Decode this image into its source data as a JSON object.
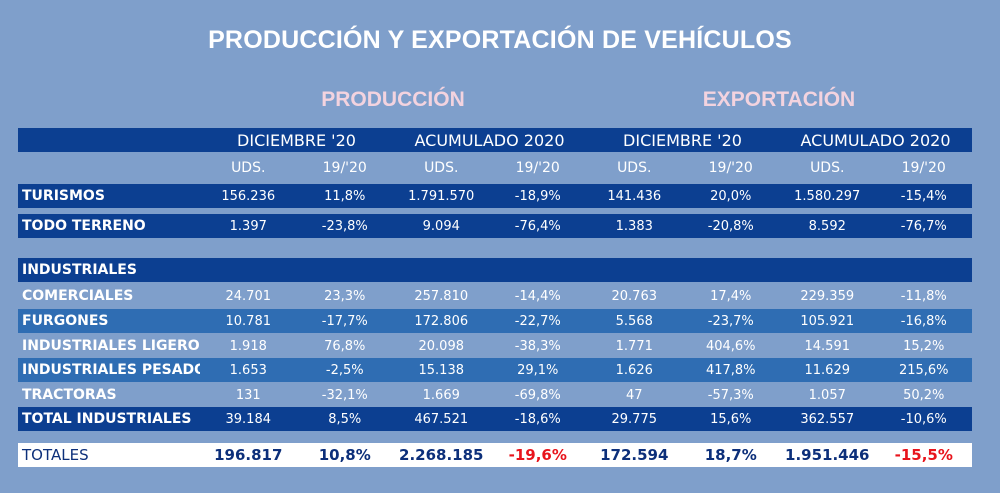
{
  "title": "PRODUCCIÓN Y EXPORTACIÓN DE VEHÍCULOS",
  "sections": [
    "PRODUCCIÓN",
    "EXPORTACIÓN"
  ],
  "periods": [
    "DICIEMBRE '20",
    "ACUMULADO 2020",
    "DICIEMBRE '20",
    "ACUMULADO 2020"
  ],
  "subheaders": [
    "UDS.",
    "19/'20",
    "UDS.",
    "19/'20",
    "UDS.",
    "19/'20",
    "UDS.",
    "19/'20"
  ],
  "rows": [
    {
      "label": "TURISMOS",
      "values": [
        "156.236",
        "11,8%",
        "1.791.570",
        "-18,9%",
        "141.436",
        "20,0%",
        "1.580.297",
        "-15,4%"
      ]
    },
    {
      "label": "TODO TERRENO",
      "values": [
        "1.397",
        "-23,8%",
        "9.094",
        "-76,4%",
        "1.383",
        "-20,8%",
        "8.592",
        "-76,7%"
      ]
    },
    {
      "label": "INDUSTRIALES",
      "values": []
    },
    {
      "label": "COMERCIALES",
      "values": [
        "24.701",
        "23,3%",
        "257.810",
        "-14,4%",
        "20.763",
        "17,4%",
        "229.359",
        "-11,8%"
      ]
    },
    {
      "label": "FURGONES",
      "values": [
        "10.781",
        "-17,7%",
        "172.806",
        "-22,7%",
        "5.568",
        "-23,7%",
        "105.921",
        "-16,8%"
      ]
    },
    {
      "label": "INDUSTRIALES LIGEROS",
      "values": [
        "1.918",
        "76,8%",
        "20.098",
        "-38,3%",
        "1.771",
        "404,6%",
        "14.591",
        "15,2%"
      ]
    },
    {
      "label": "INDUSTRIALES PESADOS",
      "values": [
        "1.653",
        "-2,5%",
        "15.138",
        "29,1%",
        "1.626",
        "417,8%",
        "11.629",
        "215,6%"
      ]
    },
    {
      "label": "TRACTORAS",
      "values": [
        "131",
        "-32,1%",
        "1.669",
        "-69,8%",
        "47",
        "-57,3%",
        "1.057",
        "50,2%"
      ]
    },
    {
      "label": "TOTAL INDUSTRIALES",
      "values": [
        "39.184",
        "8,5%",
        "467.521",
        "-18,6%",
        "29.775",
        "15,6%",
        "362.557",
        "-10,6%"
      ]
    },
    {
      "label": "TOTALES",
      "values": [
        "196.817",
        "10,8%",
        "2.268.185",
        "-19,6%",
        "172.594",
        "18,7%",
        "1.951.446",
        "-15,5%"
      ]
    }
  ],
  "colors": {
    "background": "#7f9fcb",
    "dark_row": "#0c3f91",
    "mid_row": "#2f6db3",
    "negative_total": "#e8141c",
    "section_title": "#f3d3df"
  }
}
